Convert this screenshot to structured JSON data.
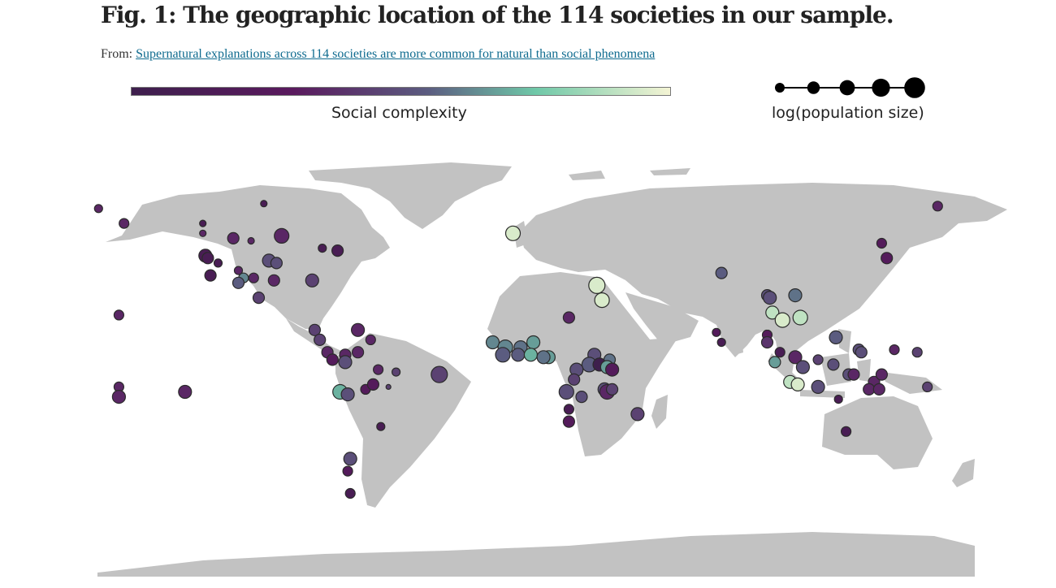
{
  "header": {
    "title": "Fig. 1: The geographic location of the 114 societies in our sample.",
    "from_prefix": "From:",
    "from_link": "Supernatural explanations across 114 societies are more common for natural than social phenomena"
  },
  "legend": {
    "color_label": "Social complexity",
    "size_label": "log(population size)"
  },
  "colors": {
    "land": "#c2c2c2",
    "marker_stroke": "#2b2b2b",
    "scale": [
      "#3e1f4d",
      "#5a1a5e",
      "#5b5c80",
      "#6fc8a8",
      "#f4f4d4"
    ]
  },
  "chart_data": {
    "type": "scatter",
    "projection": "equirectangular world map",
    "title": "",
    "color_encodes": "Social complexity",
    "size_encodes": "log(population size)",
    "size_legend_steps": 5,
    "points": [
      {
        "lon": 165,
        "lat": 65,
        "c": 0.3,
        "s": 0.3
      },
      {
        "lon": -165,
        "lat": 64,
        "c": 0.3,
        "s": 0.2
      },
      {
        "lon": -155,
        "lat": 58,
        "c": 0.3,
        "s": 0.3
      },
      {
        "lon": -100,
        "lat": 66,
        "c": 0.1,
        "s": 0.1
      },
      {
        "lon": -124,
        "lat": 58,
        "c": 0.1,
        "s": 0.1
      },
      {
        "lon": -124,
        "lat": 54,
        "c": 0.3,
        "s": 0.1
      },
      {
        "lon": -112,
        "lat": 52,
        "c": 0.3,
        "s": 0.4
      },
      {
        "lon": -105,
        "lat": 51,
        "c": 0.3,
        "s": 0.1
      },
      {
        "lon": -93,
        "lat": 53,
        "c": 0.3,
        "s": 0.6
      },
      {
        "lon": -77,
        "lat": 48,
        "c": 0.1,
        "s": 0.2
      },
      {
        "lon": -71,
        "lat": 47,
        "c": 0.1,
        "s": 0.4
      },
      {
        "lon": -123,
        "lat": 45,
        "c": 0.1,
        "s": 0.5
      },
      {
        "lon": -122,
        "lat": 44,
        "c": 0.1,
        "s": 0.4
      },
      {
        "lon": -118,
        "lat": 42,
        "c": 0.1,
        "s": 0.2
      },
      {
        "lon": -121,
        "lat": 37,
        "c": 0.1,
        "s": 0.4
      },
      {
        "lon": -110,
        "lat": 39,
        "c": 0.3,
        "s": 0.2
      },
      {
        "lon": -108,
        "lat": 36,
        "c": 0.6,
        "s": 0.3
      },
      {
        "lon": -110,
        "lat": 34,
        "c": 0.5,
        "s": 0.4
      },
      {
        "lon": -104,
        "lat": 36,
        "c": 0.3,
        "s": 0.3
      },
      {
        "lon": -96,
        "lat": 35,
        "c": 0.3,
        "s": 0.4
      },
      {
        "lon": -98,
        "lat": 43,
        "c": 0.45,
        "s": 0.5
      },
      {
        "lon": -95,
        "lat": 42,
        "c": 0.45,
        "s": 0.4
      },
      {
        "lon": -81,
        "lat": 35,
        "c": 0.4,
        "s": 0.5
      },
      {
        "lon": -102,
        "lat": 28,
        "c": 0.4,
        "s": 0.4
      },
      {
        "lon": -80,
        "lat": 15,
        "c": 0.4,
        "s": 0.4
      },
      {
        "lon": -78,
        "lat": 11,
        "c": 0.4,
        "s": 0.4
      },
      {
        "lon": -63,
        "lat": 15,
        "c": 0.3,
        "s": 0.5
      },
      {
        "lon": -58,
        "lat": 11,
        "c": 0.3,
        "s": 0.3
      },
      {
        "lon": -75,
        "lat": 6,
        "c": 0.3,
        "s": 0.4
      },
      {
        "lon": -73,
        "lat": 3,
        "c": 0.2,
        "s": 0.4
      },
      {
        "lon": -68,
        "lat": 5,
        "c": 0.3,
        "s": 0.4
      },
      {
        "lon": -63,
        "lat": 6,
        "c": 0.3,
        "s": 0.4
      },
      {
        "lon": -68,
        "lat": 2,
        "c": 0.45,
        "s": 0.5
      },
      {
        "lon": -55,
        "lat": -1,
        "c": 0.3,
        "s": 0.3
      },
      {
        "lon": -48,
        "lat": -2,
        "c": 0.4,
        "s": 0.2
      },
      {
        "lon": -31,
        "lat": -3,
        "c": 0.4,
        "s": 0.7
      },
      {
        "lon": -70,
        "lat": -10,
        "c": 0.7,
        "s": 0.6
      },
      {
        "lon": -67,
        "lat": -11,
        "c": 0.45,
        "s": 0.5
      },
      {
        "lon": -60,
        "lat": -9,
        "c": 0.2,
        "s": 0.3
      },
      {
        "lon": -57,
        "lat": -7,
        "c": 0.2,
        "s": 0.4
      },
      {
        "lon": -51,
        "lat": -8,
        "c": 0.4,
        "s": 0.0
      },
      {
        "lon": -54,
        "lat": -24,
        "c": 0.1,
        "s": 0.2
      },
      {
        "lon": -66,
        "lat": -37,
        "c": 0.45,
        "s": 0.5
      },
      {
        "lon": -67,
        "lat": -42,
        "c": 0.2,
        "s": 0.3
      },
      {
        "lon": -66,
        "lat": -51,
        "c": 0.1,
        "s": 0.3
      },
      {
        "lon": -157,
        "lat": 21,
        "c": 0.3,
        "s": 0.3
      },
      {
        "lon": -157,
        "lat": -8,
        "c": 0.3,
        "s": 0.3
      },
      {
        "lon": -157,
        "lat": -12,
        "c": 0.3,
        "s": 0.5
      },
      {
        "lon": -131,
        "lat": -10,
        "c": 0.3,
        "s": 0.5
      },
      {
        "lon": -2,
        "lat": 54,
        "c": 0.95,
        "s": 0.6
      },
      {
        "lon": 31,
        "lat": 33,
        "c": 0.95,
        "s": 0.7
      },
      {
        "lon": 33,
        "lat": 27,
        "c": 0.95,
        "s": 0.6
      },
      {
        "lon": 20,
        "lat": 20,
        "c": 0.3,
        "s": 0.4
      },
      {
        "lon": -10,
        "lat": 10,
        "c": 0.6,
        "s": 0.5
      },
      {
        "lon": -5,
        "lat": 8,
        "c": 0.6,
        "s": 0.6
      },
      {
        "lon": 1,
        "lat": 8,
        "c": 0.55,
        "s": 0.5
      },
      {
        "lon": 6,
        "lat": 10,
        "c": 0.65,
        "s": 0.5
      },
      {
        "lon": 12,
        "lat": 4,
        "c": 0.65,
        "s": 0.5
      },
      {
        "lon": -6,
        "lat": 5,
        "c": 0.5,
        "s": 0.6
      },
      {
        "lon": 0,
        "lat": 5,
        "c": 0.5,
        "s": 0.5
      },
      {
        "lon": 5,
        "lat": 5,
        "c": 0.7,
        "s": 0.5
      },
      {
        "lon": 10,
        "lat": 4,
        "c": 0.55,
        "s": 0.5
      },
      {
        "lon": 30,
        "lat": 5,
        "c": 0.45,
        "s": 0.5
      },
      {
        "lon": 36,
        "lat": 3,
        "c": 0.55,
        "s": 0.4
      },
      {
        "lon": 28,
        "lat": 1,
        "c": 0.5,
        "s": 0.6
      },
      {
        "lon": 32,
        "lat": 1,
        "c": 0.0,
        "s": 0.5
      },
      {
        "lon": 35,
        "lat": 0,
        "c": 0.65,
        "s": 0.5
      },
      {
        "lon": 37,
        "lat": -1,
        "c": 0.2,
        "s": 0.5
      },
      {
        "lon": 23,
        "lat": -1,
        "c": 0.45,
        "s": 0.5
      },
      {
        "lon": 22,
        "lat": -5,
        "c": 0.4,
        "s": 0.4
      },
      {
        "lon": 19,
        "lat": -10,
        "c": 0.45,
        "s": 0.6
      },
      {
        "lon": 25,
        "lat": -12,
        "c": 0.45,
        "s": 0.4
      },
      {
        "lon": 34,
        "lat": -9,
        "c": 0.45,
        "s": 0.5
      },
      {
        "lon": 35,
        "lat": -10,
        "c": 0.3,
        "s": 0.6
      },
      {
        "lon": 37,
        "lat": -9,
        "c": 0.4,
        "s": 0.4
      },
      {
        "lon": 20,
        "lat": -17,
        "c": 0.1,
        "s": 0.3
      },
      {
        "lon": 20,
        "lat": -22,
        "c": 0.2,
        "s": 0.4
      },
      {
        "lon": 47,
        "lat": -19,
        "c": 0.4,
        "s": 0.5
      },
      {
        "lon": 80,
        "lat": 38,
        "c": 0.5,
        "s": 0.4
      },
      {
        "lon": 98,
        "lat": 29,
        "c": 0.45,
        "s": 0.4
      },
      {
        "lon": 99,
        "lat": 28,
        "c": 0.45,
        "s": 0.5
      },
      {
        "lon": 109,
        "lat": 29,
        "c": 0.55,
        "s": 0.5
      },
      {
        "lon": 100,
        "lat": 22,
        "c": 0.9,
        "s": 0.5
      },
      {
        "lon": 104,
        "lat": 19,
        "c": 0.95,
        "s": 0.6
      },
      {
        "lon": 111,
        "lat": 20,
        "c": 0.9,
        "s": 0.6
      },
      {
        "lon": 78,
        "lat": 14,
        "c": 0.2,
        "s": 0.2
      },
      {
        "lon": 80,
        "lat": 10,
        "c": 0.1,
        "s": 0.2
      },
      {
        "lon": 98,
        "lat": 13,
        "c": 0.2,
        "s": 0.3
      },
      {
        "lon": 98,
        "lat": 10,
        "c": 0.35,
        "s": 0.4
      },
      {
        "lon": 103,
        "lat": 6,
        "c": 0.1,
        "s": 0.3
      },
      {
        "lon": 101,
        "lat": 2,
        "c": 0.65,
        "s": 0.4
      },
      {
        "lon": 109,
        "lat": 4,
        "c": 0.3,
        "s": 0.5
      },
      {
        "lon": 112,
        "lat": 0,
        "c": 0.45,
        "s": 0.5
      },
      {
        "lon": 107,
        "lat": -6,
        "c": 0.9,
        "s": 0.5
      },
      {
        "lon": 110,
        "lat": -7,
        "c": 0.95,
        "s": 0.5
      },
      {
        "lon": 118,
        "lat": -8,
        "c": 0.45,
        "s": 0.5
      },
      {
        "lon": 125,
        "lat": 12,
        "c": 0.5,
        "s": 0.5
      },
      {
        "lon": 134,
        "lat": 7,
        "c": 0.45,
        "s": 0.4
      },
      {
        "lon": 135,
        "lat": 6,
        "c": 0.45,
        "s": 0.4
      },
      {
        "lon": 148,
        "lat": 7,
        "c": 0.3,
        "s": 0.3
      },
      {
        "lon": 118,
        "lat": 3,
        "c": 0.4,
        "s": 0.3
      },
      {
        "lon": 124,
        "lat": 1,
        "c": 0.45,
        "s": 0.4
      },
      {
        "lon": 130,
        "lat": -3,
        "c": 0.45,
        "s": 0.4
      },
      {
        "lon": 132,
        "lat": -3,
        "c": 0.3,
        "s": 0.4
      },
      {
        "lon": 140,
        "lat": -6,
        "c": 0.3,
        "s": 0.4
      },
      {
        "lon": 143,
        "lat": -3,
        "c": 0.3,
        "s": 0.4
      },
      {
        "lon": 138,
        "lat": -9,
        "c": 0.3,
        "s": 0.4
      },
      {
        "lon": 142,
        "lat": -9,
        "c": 0.3,
        "s": 0.4
      },
      {
        "lon": 126,
        "lat": -13,
        "c": 0.1,
        "s": 0.2
      },
      {
        "lon": 129,
        "lat": -26,
        "c": 0.1,
        "s": 0.3
      },
      {
        "lon": 157,
        "lat": 6,
        "c": 0.4,
        "s": 0.3
      },
      {
        "lon": 161,
        "lat": -8,
        "c": 0.4,
        "s": 0.3
      },
      {
        "lon": 143,
        "lat": 50,
        "c": 0.2,
        "s": 0.3
      },
      {
        "lon": 145,
        "lat": 44,
        "c": 0.2,
        "s": 0.4
      }
    ]
  }
}
